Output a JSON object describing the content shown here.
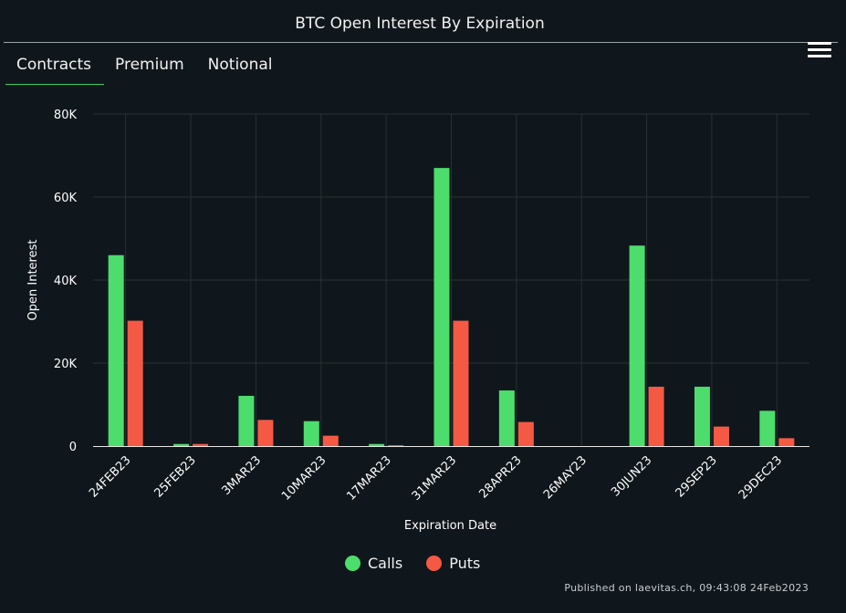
{
  "title": "BTC Open Interest By Expiration",
  "tabs": [
    "Contracts",
    "Premium",
    "Notional"
  ],
  "active_tab": "Contracts",
  "menu_icon": "hamburger-menu-icon",
  "footer": "Published on laevitas.ch, 09:43:08 24Feb2023",
  "colors": {
    "calls": "#4ddd6d",
    "puts": "#f45a43",
    "background": "#0f171c",
    "grid": "#2a3034"
  },
  "chart_data": {
    "type": "bar",
    "title": "BTC Open Interest By Expiration",
    "xlabel": "Expiration Date",
    "ylabel": "Open Interest",
    "ylim": [
      0,
      80000
    ],
    "yticks": [
      0,
      20000,
      40000,
      60000,
      80000
    ],
    "ytick_labels": [
      "0",
      "20K",
      "40K",
      "60K",
      "80K"
    ],
    "grid": true,
    "legend_position": "bottom-center",
    "categories": [
      "24FEB23",
      "25FEB23",
      "3MAR23",
      "10MAR23",
      "17MAR23",
      "31MAR23",
      "28APR23",
      "26MAY23",
      "30JUN23",
      "29SEP23",
      "29DEC23"
    ],
    "series": [
      {
        "name": "Calls",
        "color": "#4ddd6d",
        "values": [
          46000,
          500,
          12100,
          6000,
          500,
          67000,
          13400,
          0,
          48300,
          14300,
          8500
        ]
      },
      {
        "name": "Puts",
        "color": "#f45a43",
        "values": [
          30200,
          500,
          6300,
          2500,
          200,
          30200,
          5800,
          0,
          14300,
          4700,
          1900
        ]
      }
    ]
  }
}
